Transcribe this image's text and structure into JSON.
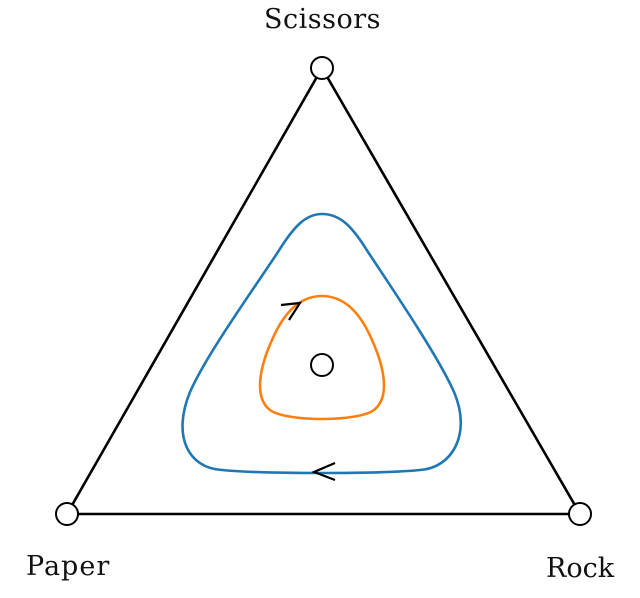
{
  "vertices": {
    "top": {
      "label": "Scissors"
    },
    "left": {
      "label": "Paper"
    },
    "right": {
      "label": "Rock"
    }
  },
  "colors": {
    "triangle": "#000000",
    "outer_orbit": "#1f77b4",
    "inner_orbit": "#ff7f0e",
    "markers_fill": "#ffffff",
    "markers_stroke": "#000000"
  },
  "orbits": [
    {
      "name": "outer-orbit",
      "direction": "counterclockwise-arrow-on-bottom"
    },
    {
      "name": "inner-orbit",
      "direction": "arrow-upper-left"
    }
  ],
  "center_marker": {
    "shape": "open-circle"
  }
}
